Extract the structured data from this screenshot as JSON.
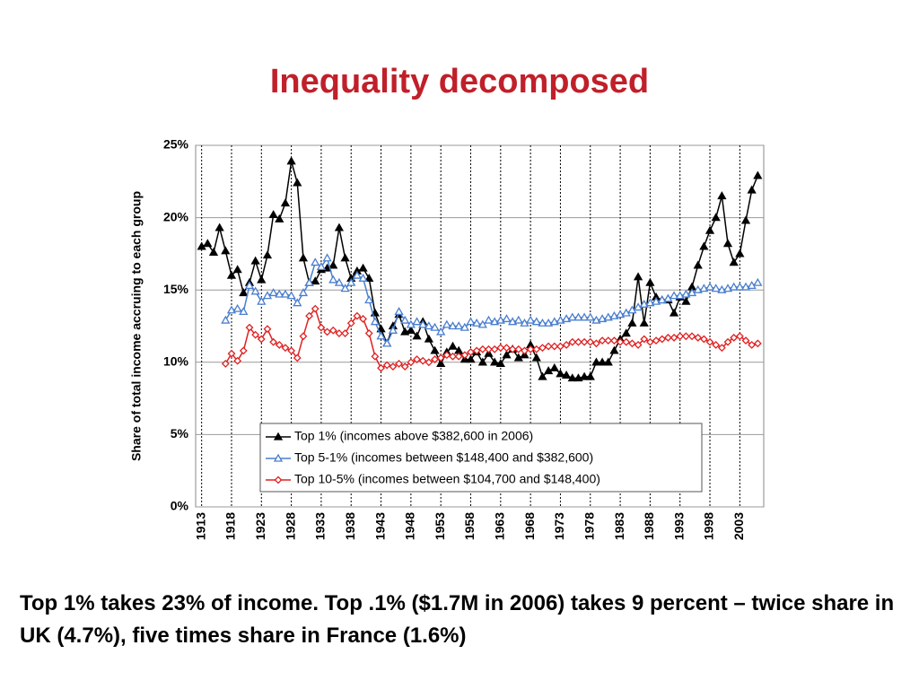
{
  "title": "Inequality decomposed",
  "caption": "Top 1% takes 23% of income. Top .1% ($1.7M in 2006) takes 9 percent – twice share in UK (4.7%), five times share in France (1.6%)",
  "chart_data": {
    "type": "line",
    "ylabel": "Share of total income accruing to each group",
    "x": [
      1913,
      1914,
      1915,
      1916,
      1917,
      1918,
      1919,
      1920,
      1921,
      1922,
      1923,
      1924,
      1925,
      1926,
      1927,
      1928,
      1929,
      1930,
      1931,
      1932,
      1933,
      1934,
      1935,
      1936,
      1937,
      1938,
      1939,
      1940,
      1941,
      1942,
      1943,
      1944,
      1945,
      1946,
      1947,
      1948,
      1949,
      1950,
      1951,
      1952,
      1953,
      1954,
      1955,
      1956,
      1957,
      1958,
      1959,
      1960,
      1961,
      1962,
      1963,
      1964,
      1965,
      1966,
      1967,
      1968,
      1969,
      1970,
      1971,
      1972,
      1973,
      1974,
      1975,
      1976,
      1977,
      1978,
      1979,
      1980,
      1981,
      1982,
      1983,
      1984,
      1985,
      1986,
      1987,
      1988,
      1989,
      1990,
      1991,
      1992,
      1993,
      1994,
      1995,
      1996,
      1997,
      1998,
      1999,
      2000,
      2001,
      2002,
      2003,
      2004,
      2005,
      2006
    ],
    "xlim": [
      1912,
      2007
    ],
    "xticks": [
      1913,
      1918,
      1923,
      1928,
      1933,
      1938,
      1943,
      1948,
      1953,
      1958,
      1963,
      1968,
      1973,
      1978,
      1983,
      1988,
      1993,
      1998,
      2003
    ],
    "ylim": [
      0,
      25
    ],
    "yticks": [
      {
        "value": 0,
        "label": "0%"
      },
      {
        "value": 5,
        "label": "5%"
      },
      {
        "value": 10,
        "label": "10%"
      },
      {
        "value": 15,
        "label": "15%"
      },
      {
        "value": 20,
        "label": "20%"
      },
      {
        "value": 25,
        "label": "25%"
      }
    ],
    "grid": true,
    "series": [
      {
        "name": "Top 1% (incomes above $382,600 in 2006)",
        "color": "#000000",
        "marker": "triangle-filled",
        "values": [
          18.0,
          18.2,
          17.6,
          19.3,
          17.7,
          16.0,
          16.4,
          14.8,
          15.5,
          17.0,
          15.7,
          17.4,
          20.2,
          19.9,
          21.0,
          23.9,
          22.4,
          17.2,
          15.5,
          15.6,
          16.4,
          16.5,
          16.7,
          19.3,
          17.2,
          15.8,
          16.3,
          16.5,
          15.8,
          13.4,
          12.3,
          11.3,
          12.5,
          13.3,
          12.1,
          12.2,
          11.8,
          12.8,
          11.6,
          10.8,
          9.9,
          10.7,
          11.1,
          10.8,
          10.2,
          10.2,
          10.7,
          10.0,
          10.6,
          10.0,
          9.9,
          10.5,
          10.9,
          10.3,
          10.5,
          11.2,
          10.3,
          9.0,
          9.4,
          9.6,
          9.2,
          9.1,
          8.9,
          8.9,
          9.0,
          9.0,
          10.0,
          10.0,
          10.0,
          10.8,
          11.6,
          12.0,
          12.7,
          15.9,
          12.7,
          15.5,
          14.5,
          14.3,
          14.3,
          13.4,
          14.5,
          14.2,
          15.2,
          16.7,
          18.0,
          19.1,
          20.0,
          21.5,
          18.2,
          16.9,
          17.5,
          19.8,
          21.9,
          22.9
        ]
      },
      {
        "name": "Top 5-1% (incomes between $148,400 and $382,600)",
        "color": "#4a7ecf",
        "marker": "triangle-open",
        "values": [
          null,
          null,
          null,
          null,
          12.9,
          13.6,
          13.7,
          13.5,
          15.3,
          14.9,
          14.2,
          14.6,
          14.8,
          14.7,
          14.7,
          14.6,
          14.1,
          14.8,
          15.5,
          16.9,
          16.6,
          17.2,
          15.7,
          15.5,
          15.1,
          15.5,
          16.0,
          15.8,
          14.3,
          12.8,
          11.8,
          11.3,
          12.2,
          13.5,
          12.9,
          12.6,
          12.8,
          12.6,
          12.5,
          12.4,
          12.1,
          12.6,
          12.5,
          12.5,
          12.4,
          12.8,
          12.7,
          12.6,
          12.9,
          12.8,
          12.9,
          13.0,
          12.8,
          12.9,
          12.7,
          12.9,
          12.8,
          12.7,
          12.7,
          12.8,
          12.9,
          13.0,
          13.1,
          13.1,
          13.1,
          13.1,
          12.9,
          13.0,
          13.1,
          13.2,
          13.3,
          13.4,
          13.6,
          13.8,
          14.0,
          14.1,
          14.2,
          14.3,
          14.4,
          14.6,
          14.6,
          14.7,
          14.8,
          15.0,
          15.1,
          15.2,
          15.1,
          15.0,
          15.1,
          15.2,
          15.2,
          15.2,
          15.3,
          15.5
        ]
      },
      {
        "name": "Top 10-5% (incomes between $104,700 and $148,400)",
        "color": "#e02020",
        "marker": "diamond-open",
        "values": [
          null,
          null,
          null,
          null,
          9.9,
          10.6,
          10.1,
          10.8,
          12.4,
          11.9,
          11.6,
          12.3,
          11.4,
          11.2,
          11.0,
          10.8,
          10.3,
          11.8,
          13.2,
          13.7,
          12.4,
          12.1,
          12.2,
          12.0,
          12.0,
          12.7,
          13.2,
          13.0,
          12.0,
          10.4,
          9.6,
          9.8,
          9.7,
          9.9,
          9.7,
          10.0,
          10.2,
          10.1,
          10.0,
          10.2,
          10.3,
          10.5,
          10.4,
          10.4,
          10.5,
          10.7,
          10.8,
          10.9,
          10.9,
          10.9,
          11.0,
          11.0,
          10.9,
          10.9,
          10.8,
          10.9,
          10.9,
          11.0,
          11.1,
          11.1,
          11.1,
          11.2,
          11.4,
          11.4,
          11.4,
          11.4,
          11.3,
          11.5,
          11.5,
          11.5,
          11.4,
          11.4,
          11.3,
          11.2,
          11.6,
          11.4,
          11.5,
          11.6,
          11.7,
          11.7,
          11.8,
          11.8,
          11.8,
          11.7,
          11.6,
          11.4,
          11.2,
          11.0,
          11.4,
          11.7,
          11.8,
          11.5,
          11.2,
          11.3
        ]
      }
    ]
  }
}
